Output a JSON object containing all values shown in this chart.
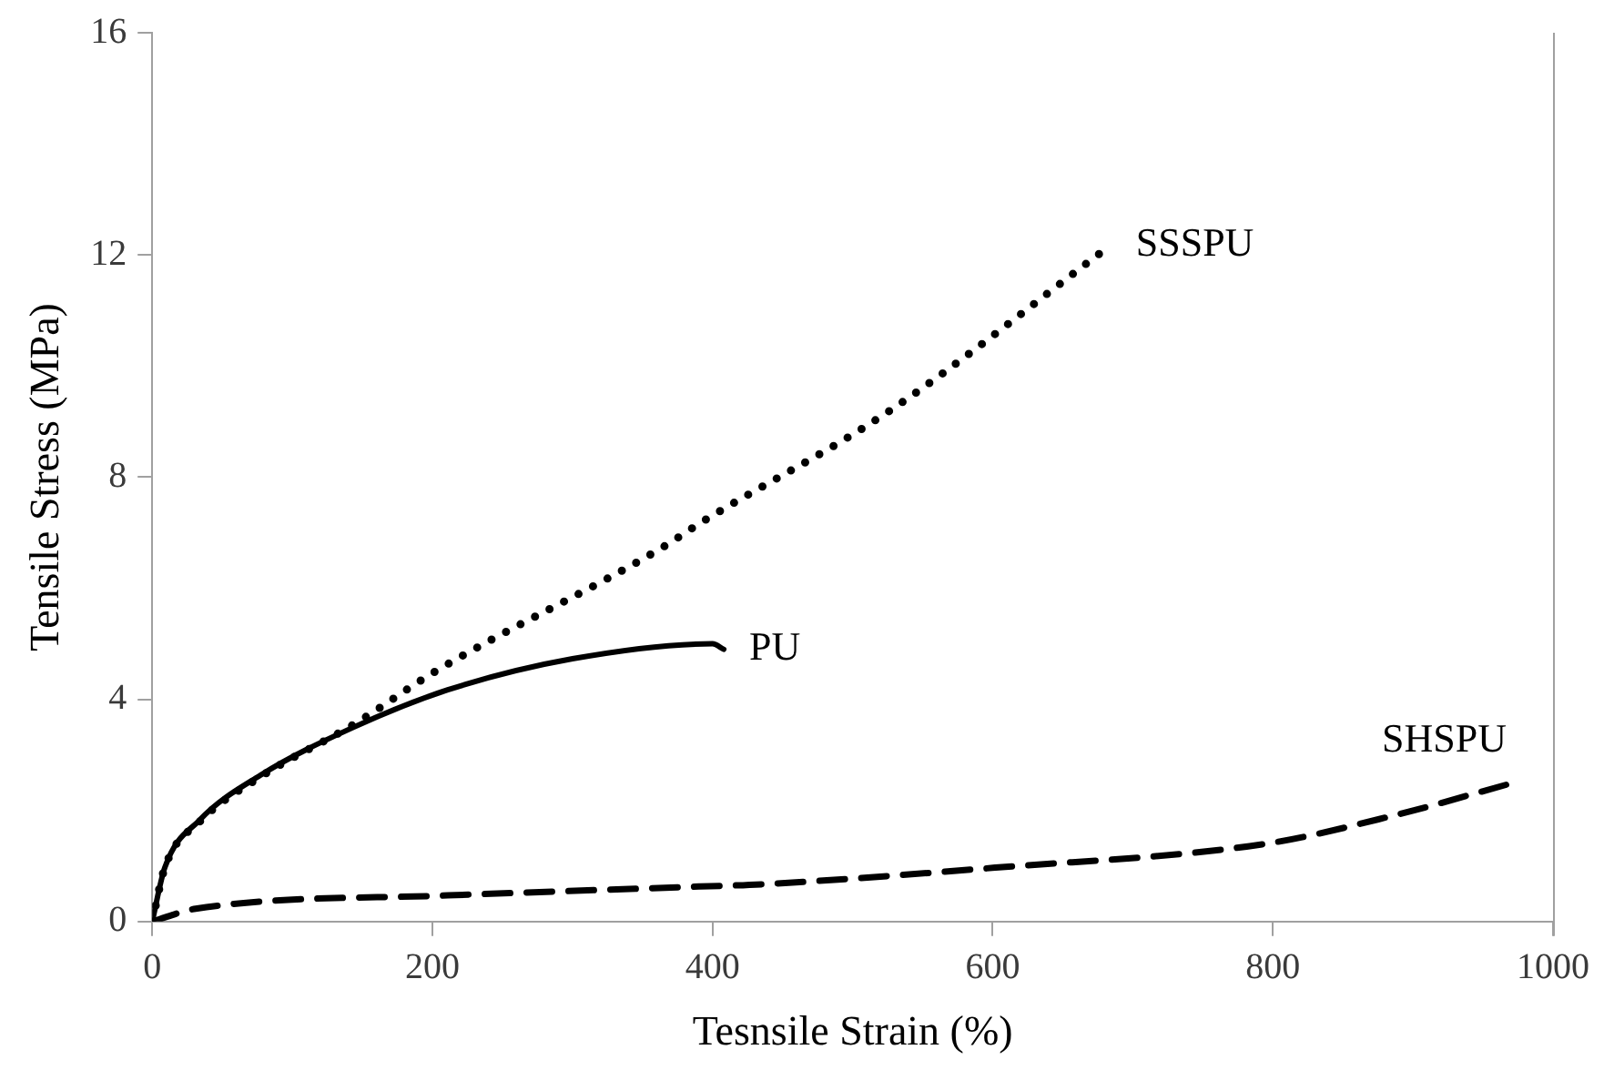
{
  "chart_data": {
    "type": "line",
    "xlabel": "Tesnsile Strain (%)",
    "ylabel": "Tensile Stress (MPa)",
    "xlim": [
      0,
      1000
    ],
    "xticks": [
      0,
      200,
      400,
      600,
      800,
      1000
    ],
    "ylim": [
      0,
      16
    ],
    "yticks": [
      0,
      4,
      8,
      12,
      16
    ],
    "grid": false,
    "legend": false,
    "marker": "none",
    "series": [
      {
        "name": "SSSPU",
        "color": "#000000",
        "line_style": "dotted",
        "x": [
          0,
          9,
          34,
          77,
          144,
          202,
          364,
          391,
          525,
          684
        ],
        "values": [
          0,
          0.97,
          1.8,
          2.6,
          3.55,
          4.5,
          6.73,
          7.17,
          9.17,
          12.17
        ]
      },
      {
        "name": "PU",
        "color": "#000000",
        "line_style": "solid",
        "x": [
          0,
          9,
          34,
          77,
          144,
          211,
          300,
          400,
          408
        ],
        "values": [
          0,
          0.97,
          1.83,
          2.63,
          3.5,
          4.17,
          4.73,
          5.0,
          4.9
        ]
      },
      {
        "name": "SHSPU",
        "color": "#000000",
        "line_style": "dashed",
        "x": [
          0,
          31,
          211,
          391,
          435,
          602,
          795,
          885,
          972
        ],
        "values": [
          0,
          0.23,
          0.47,
          0.63,
          0.67,
          0.97,
          1.4,
          1.9,
          2.5
        ]
      }
    ]
  }
}
